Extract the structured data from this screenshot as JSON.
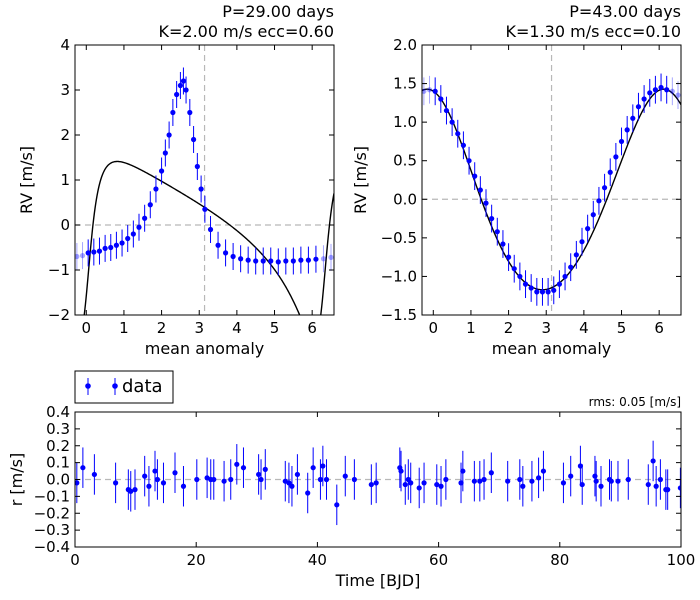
{
  "colors": {
    "data": "#0000ff",
    "model": "#000000",
    "guide": "#b8b8b8"
  },
  "chart_data": [
    {
      "type": "scatter",
      "title": "P=29.00 days\nK=2.00 m/s  ecc=0.60",
      "title_lines": [
        "P=29.00 days",
        "K=2.00 m/s  ecc=0.60"
      ],
      "xlabel": "mean anomaly",
      "ylabel": "RV [m/s]",
      "xlim": [
        -0.3,
        6.58
      ],
      "ylim": [
        -2,
        4
      ],
      "xticks": [
        "0",
        "1",
        "2",
        "3",
        "4",
        "5",
        "6"
      ],
      "yticks": [
        "−2",
        "−1",
        "0",
        "1",
        "2",
        "3",
        "4"
      ],
      "guides": {
        "x": 3.14159,
        "y": 0
      },
      "model": {
        "period": 29.0,
        "K": 2.0,
        "ecc": 0.6,
        "omega": 4.2
      },
      "series": [
        {
          "x": [
            -0.25,
            -0.1,
            0.05,
            0.2,
            0.35,
            0.5,
            0.65,
            0.8,
            0.95,
            1.1,
            1.25,
            1.4,
            1.55,
            1.7,
            1.85,
            2.0,
            2.1,
            2.2,
            2.3,
            2.4,
            2.5,
            2.58,
            2.65,
            2.75,
            2.85,
            2.95,
            3.05,
            3.15,
            3.3,
            3.5,
            3.7,
            3.9,
            4.1,
            4.3,
            4.5,
            4.7,
            4.9,
            5.1,
            5.3,
            5.5,
            5.7,
            5.9,
            6.1,
            6.3,
            6.5
          ],
          "y": [
            -0.7,
            -0.68,
            -0.62,
            -0.6,
            -0.58,
            -0.52,
            -0.5,
            -0.45,
            -0.4,
            -0.3,
            -0.2,
            -0.05,
            0.15,
            0.45,
            0.8,
            1.2,
            1.6,
            2.0,
            2.5,
            2.9,
            3.1,
            3.2,
            3.0,
            2.5,
            1.9,
            1.3,
            0.8,
            0.35,
            -0.1,
            -0.45,
            -0.62,
            -0.7,
            -0.75,
            -0.78,
            -0.8,
            -0.8,
            -0.8,
            -0.82,
            -0.8,
            -0.8,
            -0.78,
            -0.78,
            -0.76,
            -0.75,
            -0.72
          ],
          "err": 0.3
        }
      ]
    },
    {
      "type": "scatter",
      "title": "P=43.00 days\nK=1.30 m/s  ecc=0.10",
      "title_lines": [
        "P=43.00 days",
        "K=1.30 m/s  ecc=0.10"
      ],
      "xlabel": "mean anomaly",
      "ylabel": "RV [m/s]",
      "xlim": [
        -0.3,
        6.58
      ],
      "ylim": [
        -1.5,
        2.0
      ],
      "xticks": [
        "0",
        "1",
        "2",
        "3",
        "4",
        "5",
        "6"
      ],
      "yticks": [
        "−1.5",
        "−1.0",
        "−0.5",
        "0.0",
        "0.5",
        "1.0",
        "1.5",
        "2.0"
      ],
      "guides": {
        "x": 3.14159,
        "y": 0
      },
      "model": {
        "period": 43.0,
        "K": 1.3,
        "ecc": 0.1,
        "omega": 0.2
      },
      "series": [
        {
          "x": [
            -0.25,
            -0.1,
            0.05,
            0.2,
            0.35,
            0.5,
            0.65,
            0.8,
            0.95,
            1.1,
            1.25,
            1.4,
            1.55,
            1.7,
            1.85,
            2.0,
            2.15,
            2.3,
            2.45,
            2.6,
            2.75,
            2.9,
            3.05,
            3.2,
            3.35,
            3.5,
            3.65,
            3.8,
            3.95,
            4.1,
            4.25,
            4.4,
            4.55,
            4.7,
            4.85,
            5.0,
            5.15,
            5.3,
            5.45,
            5.6,
            5.75,
            5.9,
            6.05,
            6.2,
            6.35,
            6.5
          ],
          "y": [
            1.4,
            1.42,
            1.4,
            1.3,
            1.15,
            1.0,
            0.85,
            0.7,
            0.5,
            0.3,
            0.12,
            -0.05,
            -0.25,
            -0.42,
            -0.58,
            -0.75,
            -0.9,
            -1.0,
            -1.1,
            -1.15,
            -1.2,
            -1.2,
            -1.2,
            -1.18,
            -1.1,
            -1.0,
            -0.88,
            -0.72,
            -0.55,
            -0.38,
            -0.2,
            -0.02,
            0.15,
            0.35,
            0.55,
            0.75,
            0.9,
            1.05,
            1.2,
            1.3,
            1.38,
            1.42,
            1.45,
            1.42,
            1.4,
            1.35
          ],
          "err": 0.18
        }
      ]
    },
    {
      "type": "scatter",
      "xlabel": "Time [BJD]",
      "ylabel": "r [m/s]",
      "xlim": [
        0,
        100
      ],
      "ylim": [
        -0.4,
        0.4
      ],
      "xticks": [
        "0",
        "20",
        "40",
        "60",
        "80",
        "100"
      ],
      "yticks": [
        "−0.4",
        "−0.3",
        "−0.2",
        "−0.1",
        "0.0",
        "0.1",
        "0.2",
        "0.3",
        "0.4"
      ],
      "guides": {
        "y": 0
      },
      "legend": {
        "label": "data",
        "placement": "above-top-left"
      },
      "annotation": "rms: 0.05 [m/s]",
      "series": [
        {
          "name": "data",
          "x": [
            0.3,
            1.3,
            3.2,
            6.7,
            8.8,
            9.2,
            9.9,
            11.5,
            12.2,
            13.2,
            13.6,
            14.6,
            16.5,
            17.9,
            20.1,
            21.8,
            22.4,
            22.9,
            24.6,
            25.7,
            26.7,
            27.8,
            30.3,
            30.7,
            31.4,
            34.7,
            35.3,
            35.8,
            36.7,
            38.4,
            39.3,
            40.5,
            40.9,
            41.5,
            43.2,
            44.6,
            46.1,
            48.9,
            49.7,
            53.6,
            53.8,
            54.5,
            55.0,
            55.4,
            56.8,
            57.6,
            59.7,
            60.4,
            61.2,
            63.7,
            64.0,
            65.9,
            66.8,
            67.5,
            68.7,
            71.4,
            73.4,
            73.9,
            75.4,
            76.5,
            77.3,
            80.6,
            81.8,
            83.4,
            83.7,
            85.8,
            86.0,
            86.8,
            88.2,
            88.5,
            89.6,
            91.3,
            94.6,
            95.4,
            95.9,
            96.6,
            97.5,
            97.8,
            99.9
          ],
          "y": [
            -0.02,
            0.07,
            0.03,
            -0.02,
            -0.06,
            -0.07,
            -0.06,
            0.02,
            -0.04,
            0.05,
            0.0,
            -0.02,
            0.04,
            -0.04,
            0.0,
            0.01,
            0.0,
            0.0,
            -0.01,
            0.0,
            0.09,
            0.07,
            0.03,
            0.0,
            0.06,
            -0.01,
            -0.02,
            -0.04,
            0.03,
            -0.08,
            0.07,
            0.0,
            0.08,
            0.0,
            -0.15,
            0.02,
            0.0,
            -0.03,
            -0.02,
            0.07,
            0.05,
            -0.03,
            0.0,
            -0.02,
            -0.05,
            -0.02,
            -0.03,
            -0.04,
            0.0,
            -0.02,
            0.05,
            -0.01,
            -0.01,
            0.0,
            0.04,
            -0.01,
            0.0,
            -0.04,
            -0.01,
            0.01,
            0.05,
            -0.02,
            0.02,
            0.08,
            -0.03,
            0.02,
            -0.01,
            -0.04,
            0.0,
            -0.01,
            -0.01,
            0.0,
            -0.03,
            0.11,
            -0.04,
            0.0,
            -0.06,
            -0.06,
            -0.05
          ],
          "err": 0.12
        }
      ]
    }
  ]
}
